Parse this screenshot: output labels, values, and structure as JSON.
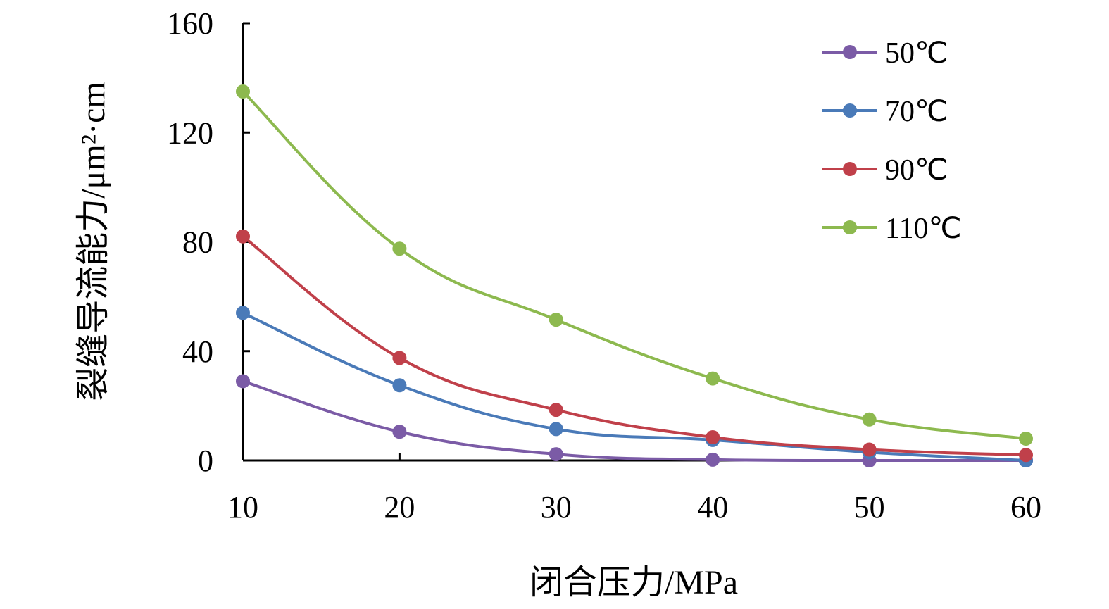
{
  "chart_data": {
    "type": "line",
    "title": "",
    "xlabel": "闭合压力/MPa",
    "ylabel": "裂缝导流能力/μm²·cm",
    "x": [
      10,
      20,
      30,
      40,
      50,
      60
    ],
    "xlim": [
      10,
      60
    ],
    "ylim": [
      0,
      160
    ],
    "x_ticks": [
      "10",
      "20",
      "30",
      "40",
      "50",
      "60"
    ],
    "y_ticks": [
      "0",
      "40",
      "80",
      120,
      "160"
    ],
    "grid": false,
    "legend_position": "top-right",
    "series": [
      {
        "name": "50℃",
        "color": "#7b5ba6",
        "values": [
          29,
          10.5,
          2.3,
          0.3,
          0,
          0
        ]
      },
      {
        "name": "70℃",
        "color": "#4a7ab8",
        "values": [
          54,
          27.5,
          11.5,
          7.5,
          3,
          0
        ]
      },
      {
        "name": "90℃",
        "color": "#c0404a",
        "values": [
          82,
          37.5,
          18.5,
          8.5,
          4,
          2
        ]
      },
      {
        "name": "110℃",
        "color": "#8db94f",
        "values": [
          135,
          77.5,
          51.5,
          30,
          15,
          8
        ]
      }
    ]
  }
}
